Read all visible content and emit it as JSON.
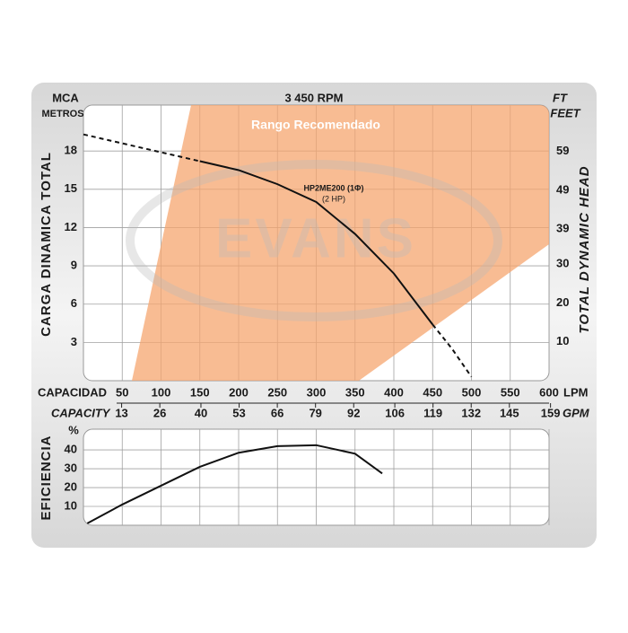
{
  "chart_data": [
    {
      "type": "line",
      "title": "3 450 RPM",
      "ylabel_top": "MCA",
      "ylabel_unit": "METROS",
      "y2label_top": "FT",
      "y2label_unit": "FEET",
      "ylabel": "CARGA DINAMICA TOTAL",
      "y2label": "TOTAL DYNAMIC HEAD",
      "xlabel": "CAPACIDAD",
      "xunit": "LPM",
      "x2label": "CAPACITY",
      "x2unit": "GPM",
      "region_label": "Rango Recomendado",
      "watermark": "EVANS",
      "annotations": [
        "HP2ME200 (1Φ)",
        "(2 HP)"
      ],
      "x": [
        0,
        50,
        100,
        150,
        200,
        250,
        300,
        350,
        400,
        450,
        475,
        500
      ],
      "xlim": [
        0,
        600
      ],
      "xticks": [
        50,
        100,
        150,
        200,
        250,
        300,
        350,
        400,
        450,
        500,
        550,
        600
      ],
      "x2lim": [
        0,
        158.5
      ],
      "x2ticks": [
        13,
        26,
        40,
        53,
        66,
        79,
        92,
        106,
        119,
        132,
        145,
        159
      ],
      "ylim": [
        0,
        21.6
      ],
      "yticks": [
        3,
        6,
        9,
        12,
        15,
        18
      ],
      "y2lim": [
        0,
        70.9
      ],
      "y2ticks": [
        10,
        20,
        30,
        39,
        49,
        59
      ],
      "grid": true,
      "series": [
        {
          "style": "solid",
          "color": "#111111",
          "values": [
            null,
            null,
            null,
            17.2,
            16.5,
            15.4,
            14.0,
            11.5,
            8.4,
            4.4,
            null,
            null
          ]
        },
        {
          "style": "dashed",
          "color": "#111111",
          "values": [
            19.3,
            18.6,
            17.9,
            17.2,
            null,
            null,
            null,
            null,
            null,
            4.4,
            2.5,
            0.3
          ]
        }
      ]
    },
    {
      "type": "line",
      "ylabel": "EFICIENCIA",
      "yunit": "%",
      "x": [
        5,
        50,
        100,
        150,
        200,
        250,
        300,
        350,
        385
      ],
      "xlim": [
        0,
        600
      ],
      "ylim": [
        0,
        51
      ],
      "yticks": [
        10,
        20,
        30,
        40
      ],
      "grid": true,
      "series": [
        {
          "style": "solid",
          "color": "#111111",
          "values": [
            1,
            11,
            21,
            31,
            38.5,
            42,
            42.5,
            38,
            27.5
          ]
        }
      ]
    }
  ]
}
